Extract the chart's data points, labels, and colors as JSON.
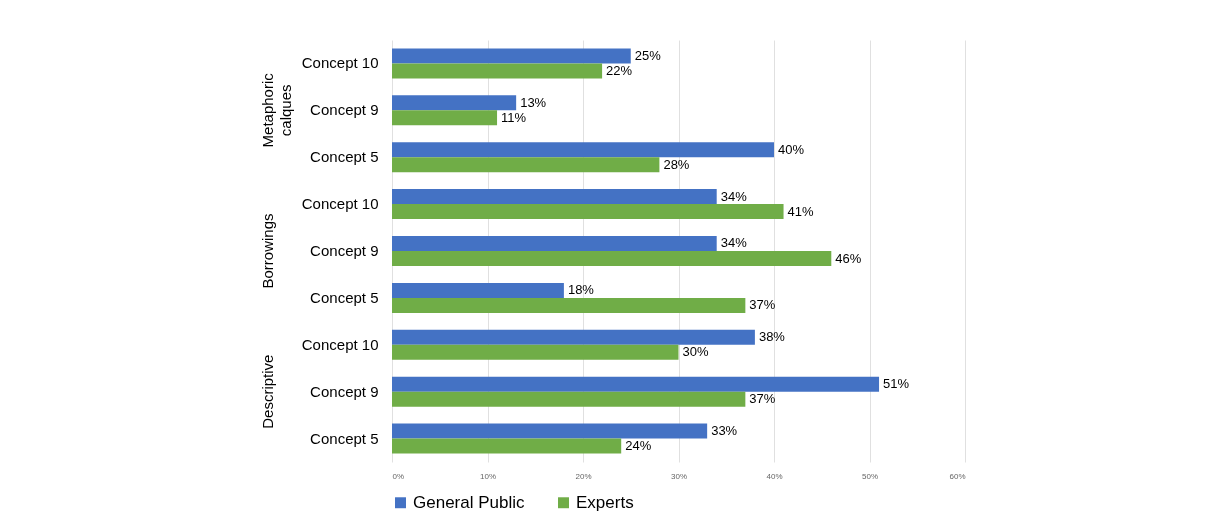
{
  "chart_data": {
    "type": "bar",
    "orientation": "horizontal",
    "categories": [
      "Concept 10",
      "Concept 9",
      "Concept 5",
      "Concept 10",
      "Concept 9",
      "Concept 5",
      "Concept 10",
      "Concept 9",
      "Concept 5"
    ],
    "series": [
      {
        "name": "General Public",
        "color": "#4472c4",
        "values": [
          25,
          13,
          40,
          34,
          34,
          18,
          38,
          51,
          33
        ],
        "value_labels": [
          "25%",
          "13%",
          "40%",
          "34%",
          "34%",
          "18%",
          "38%",
          "51%",
          "33%"
        ]
      },
      {
        "name": "Experts",
        "color": "#70ad47",
        "values": [
          22,
          11,
          28,
          41,
          46,
          37,
          30,
          37,
          24
        ],
        "value_labels": [
          "22%",
          "11%",
          "28%",
          "41%",
          "46%",
          "37%",
          "30%",
          "37%",
          "24%"
        ]
      }
    ],
    "xlim": [
      0,
      60
    ],
    "xticks": [
      {
        "value": 0,
        "label": "0%"
      },
      {
        "value": 10,
        "label": "10%"
      },
      {
        "value": 20,
        "label": "20%"
      },
      {
        "value": 30,
        "label": "30%"
      },
      {
        "value": 40,
        "label": "40%"
      },
      {
        "value": 50,
        "label": "50%"
      },
      {
        "value": 60,
        "label": "60%"
      }
    ],
    "annotations": [
      "Metaphoric calques",
      "Borrowings",
      "Descriptive"
    ],
    "grid": "x",
    "legend": "bottom"
  }
}
